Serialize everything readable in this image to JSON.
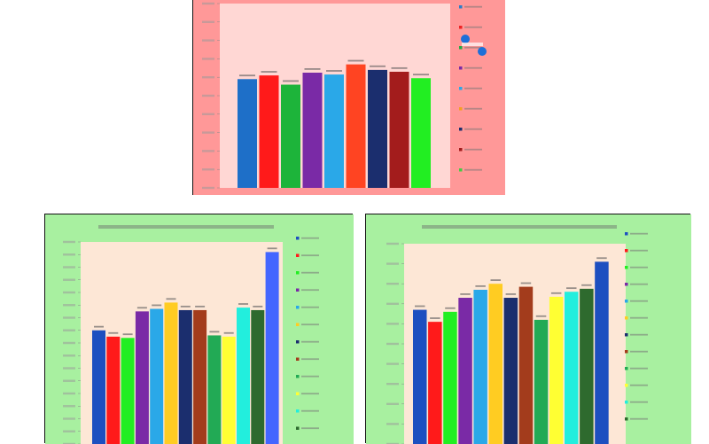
{
  "chart_data": [
    {
      "type": "bar",
      "title": "",
      "colors": [
        "#1e6fc8",
        "#ff1a1a",
        "#1db43a",
        "#7a2aa6",
        "#2aa8e8",
        "#ff4422",
        "#1b2e6e",
        "#a31c1c",
        "#22ee22"
      ],
      "series": [
        {
          "name": "",
          "values": [
            59.0,
            61.0,
            56.0,
            62.5,
            61.5,
            67.0,
            64.0,
            63.0,
            59.5
          ]
        }
      ],
      "ylim": [
        0,
        100
      ],
      "legend_position": "right",
      "legend_colors": [
        "#2a7ec9",
        "#ee2222",
        "#22aa44",
        "#7a2aa6",
        "#2aa8e8",
        "#f5a020",
        "#1b2e6e",
        "#a31c1c",
        "#44cc44"
      ],
      "chart_bg": "#ffd7d4",
      "panel_bg": "#ff9898",
      "markers_color": "#1e6fd8"
    },
    {
      "type": "bar",
      "title": "",
      "colors": [
        "#1d4fc0",
        "#ff1a1a",
        "#22ee22",
        "#7a2aa6",
        "#2aa8e8",
        "#ffcc22",
        "#1b2e6e",
        "#a33c1c",
        "#22aa55",
        "#ffff33",
        "#22eedd",
        "#2e6a2e",
        "#4466ff"
      ],
      "series": [
        {
          "name": "",
          "values": [
            45.0,
            42.5,
            42.0,
            52.5,
            53.5,
            56.0,
            53.0,
            53.0,
            43.0,
            42.5,
            54.0,
            53.0,
            76.0
          ]
        }
      ],
      "ylim": [
        0,
        80
      ],
      "legend_position": "right",
      "legend_colors": [
        "#1d4fc0",
        "#ff1a1a",
        "#22ee22",
        "#7a2aa6",
        "#2aa8e8",
        "#ffcc22",
        "#1b2e6e",
        "#a33c1c",
        "#22aa55",
        "#ffff33",
        "#22eedd",
        "#2e6a2e"
      ],
      "chart_bg": "#fde7d6",
      "panel_bg": "#a8f0a0"
    },
    {
      "type": "bar",
      "title": "",
      "colors": [
        "#1d4fc0",
        "#ff1a1a",
        "#22ee22",
        "#7a2aa6",
        "#2aa8e8",
        "#ffcc22",
        "#1b2e6e",
        "#a33c1c",
        "#22aa55",
        "#ffff33",
        "#22eedd",
        "#2e6a2e",
        "#1d4fc0"
      ],
      "series": [
        {
          "name": "",
          "values": [
            67.0,
            61.0,
            66.0,
            73.0,
            77.0,
            80.0,
            73.0,
            78.5,
            62.0,
            73.5,
            76.0,
            77.5,
            91.0
          ]
        }
      ],
      "ylim": [
        0,
        100
      ],
      "legend_position": "right",
      "legend_colors": [
        "#1d4fc0",
        "#ff1a1a",
        "#22ee22",
        "#7a2aa6",
        "#2aa8e8",
        "#ffcc22",
        "#1b2e6e",
        "#a33c1c",
        "#22aa55",
        "#ffff33",
        "#22eedd",
        "#2e6a2e"
      ],
      "chart_bg": "#fde7d6",
      "panel_bg": "#a8f0a0"
    }
  ]
}
